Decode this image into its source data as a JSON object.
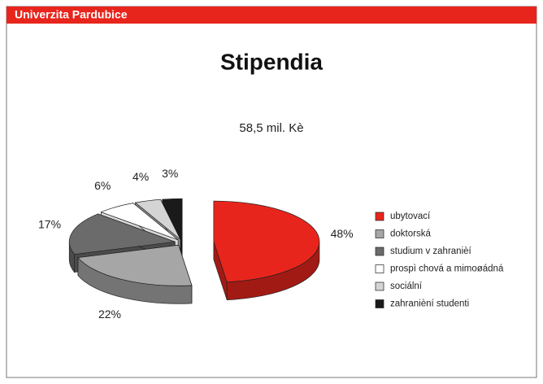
{
  "header": {
    "title": "Univerzita Pardubice"
  },
  "chart_data": {
    "type": "pie",
    "title": "Stipendia",
    "subtitle": "58,5 mil. Kè",
    "categories": [
      "ubytovací",
      "doktorská",
      "studium v zahranièí",
      "prospì chová a mimoøádná",
      "sociální",
      "zahranièní studenti"
    ],
    "values": [
      48,
      22,
      17,
      6,
      4,
      3
    ],
    "value_labels": [
      "48%",
      "22%",
      "17%",
      "6%",
      "4%",
      "3%"
    ],
    "colors": [
      "#e8251c",
      "#a6a6a6",
      "#6b6b6b",
      "#ffffff",
      "#d4d4d4",
      "#1a1a1a"
    ],
    "legend": "right"
  }
}
